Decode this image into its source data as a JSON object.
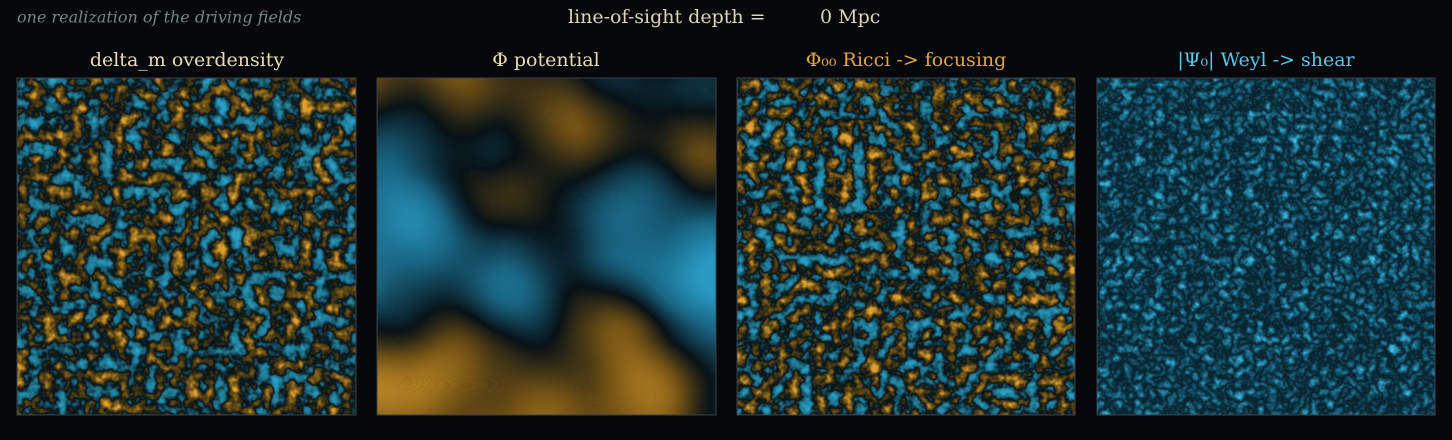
{
  "header": {
    "caption": "one realization of the driving fields",
    "depth_label": "line-of-sight depth  =",
    "depth_value": "0 Mpc"
  },
  "panels": [
    {
      "title": "delta_m   overdensity"
    },
    {
      "title": "Φ   potential"
    },
    {
      "title": "Φ₀₀   Ricci  ->  focusing"
    },
    {
      "title": "|Ψ₀|   Weyl  ->  shear"
    }
  ]
}
